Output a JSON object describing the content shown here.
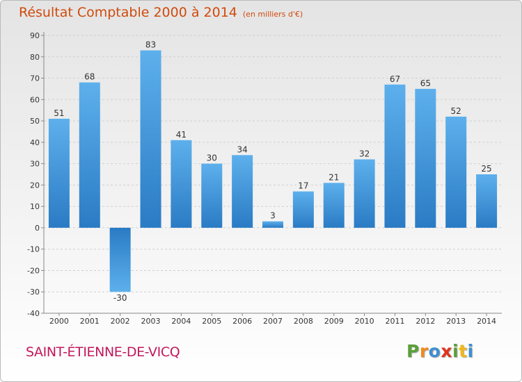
{
  "chart_data": {
    "type": "bar",
    "title": "Résultat Comptable 2000 à 2014",
    "subtitle": "(en milliers d'€)",
    "categories": [
      "2000",
      "2001",
      "2002",
      "2003",
      "2004",
      "2005",
      "2006",
      "2007",
      "2008",
      "2009",
      "2010",
      "2011",
      "2012",
      "2013",
      "2014"
    ],
    "values": [
      51,
      68,
      -30,
      83,
      41,
      30,
      34,
      3,
      17,
      21,
      32,
      67,
      65,
      52,
      25
    ],
    "data_labels": [
      "51",
      "68",
      "-30",
      "83",
      "41",
      "30",
      "34",
      "3",
      "17",
      "21",
      "32",
      "67",
      "65",
      "52",
      "25"
    ],
    "y_ticks": [
      "90",
      "80",
      "70",
      "60",
      "50",
      "40",
      "30",
      "20",
      "10",
      "0",
      "-10",
      "-20",
      "-30",
      "-40"
    ],
    "ylim": [
      -40,
      90
    ],
    "grid": true,
    "bar_color": "#3b93d9"
  },
  "footer": {
    "place": "SAINT-ÉTIENNE-DE-VICQ",
    "logo_letters": [
      "P",
      "r",
      "o",
      "x",
      "i",
      "t",
      "i"
    ],
    "logo_colors": [
      "#5aa03b",
      "#f08a1c",
      "#3e8fd2",
      "#e0331c",
      "#5aa03b",
      "#f0b81c",
      "#3e8fd2"
    ]
  }
}
